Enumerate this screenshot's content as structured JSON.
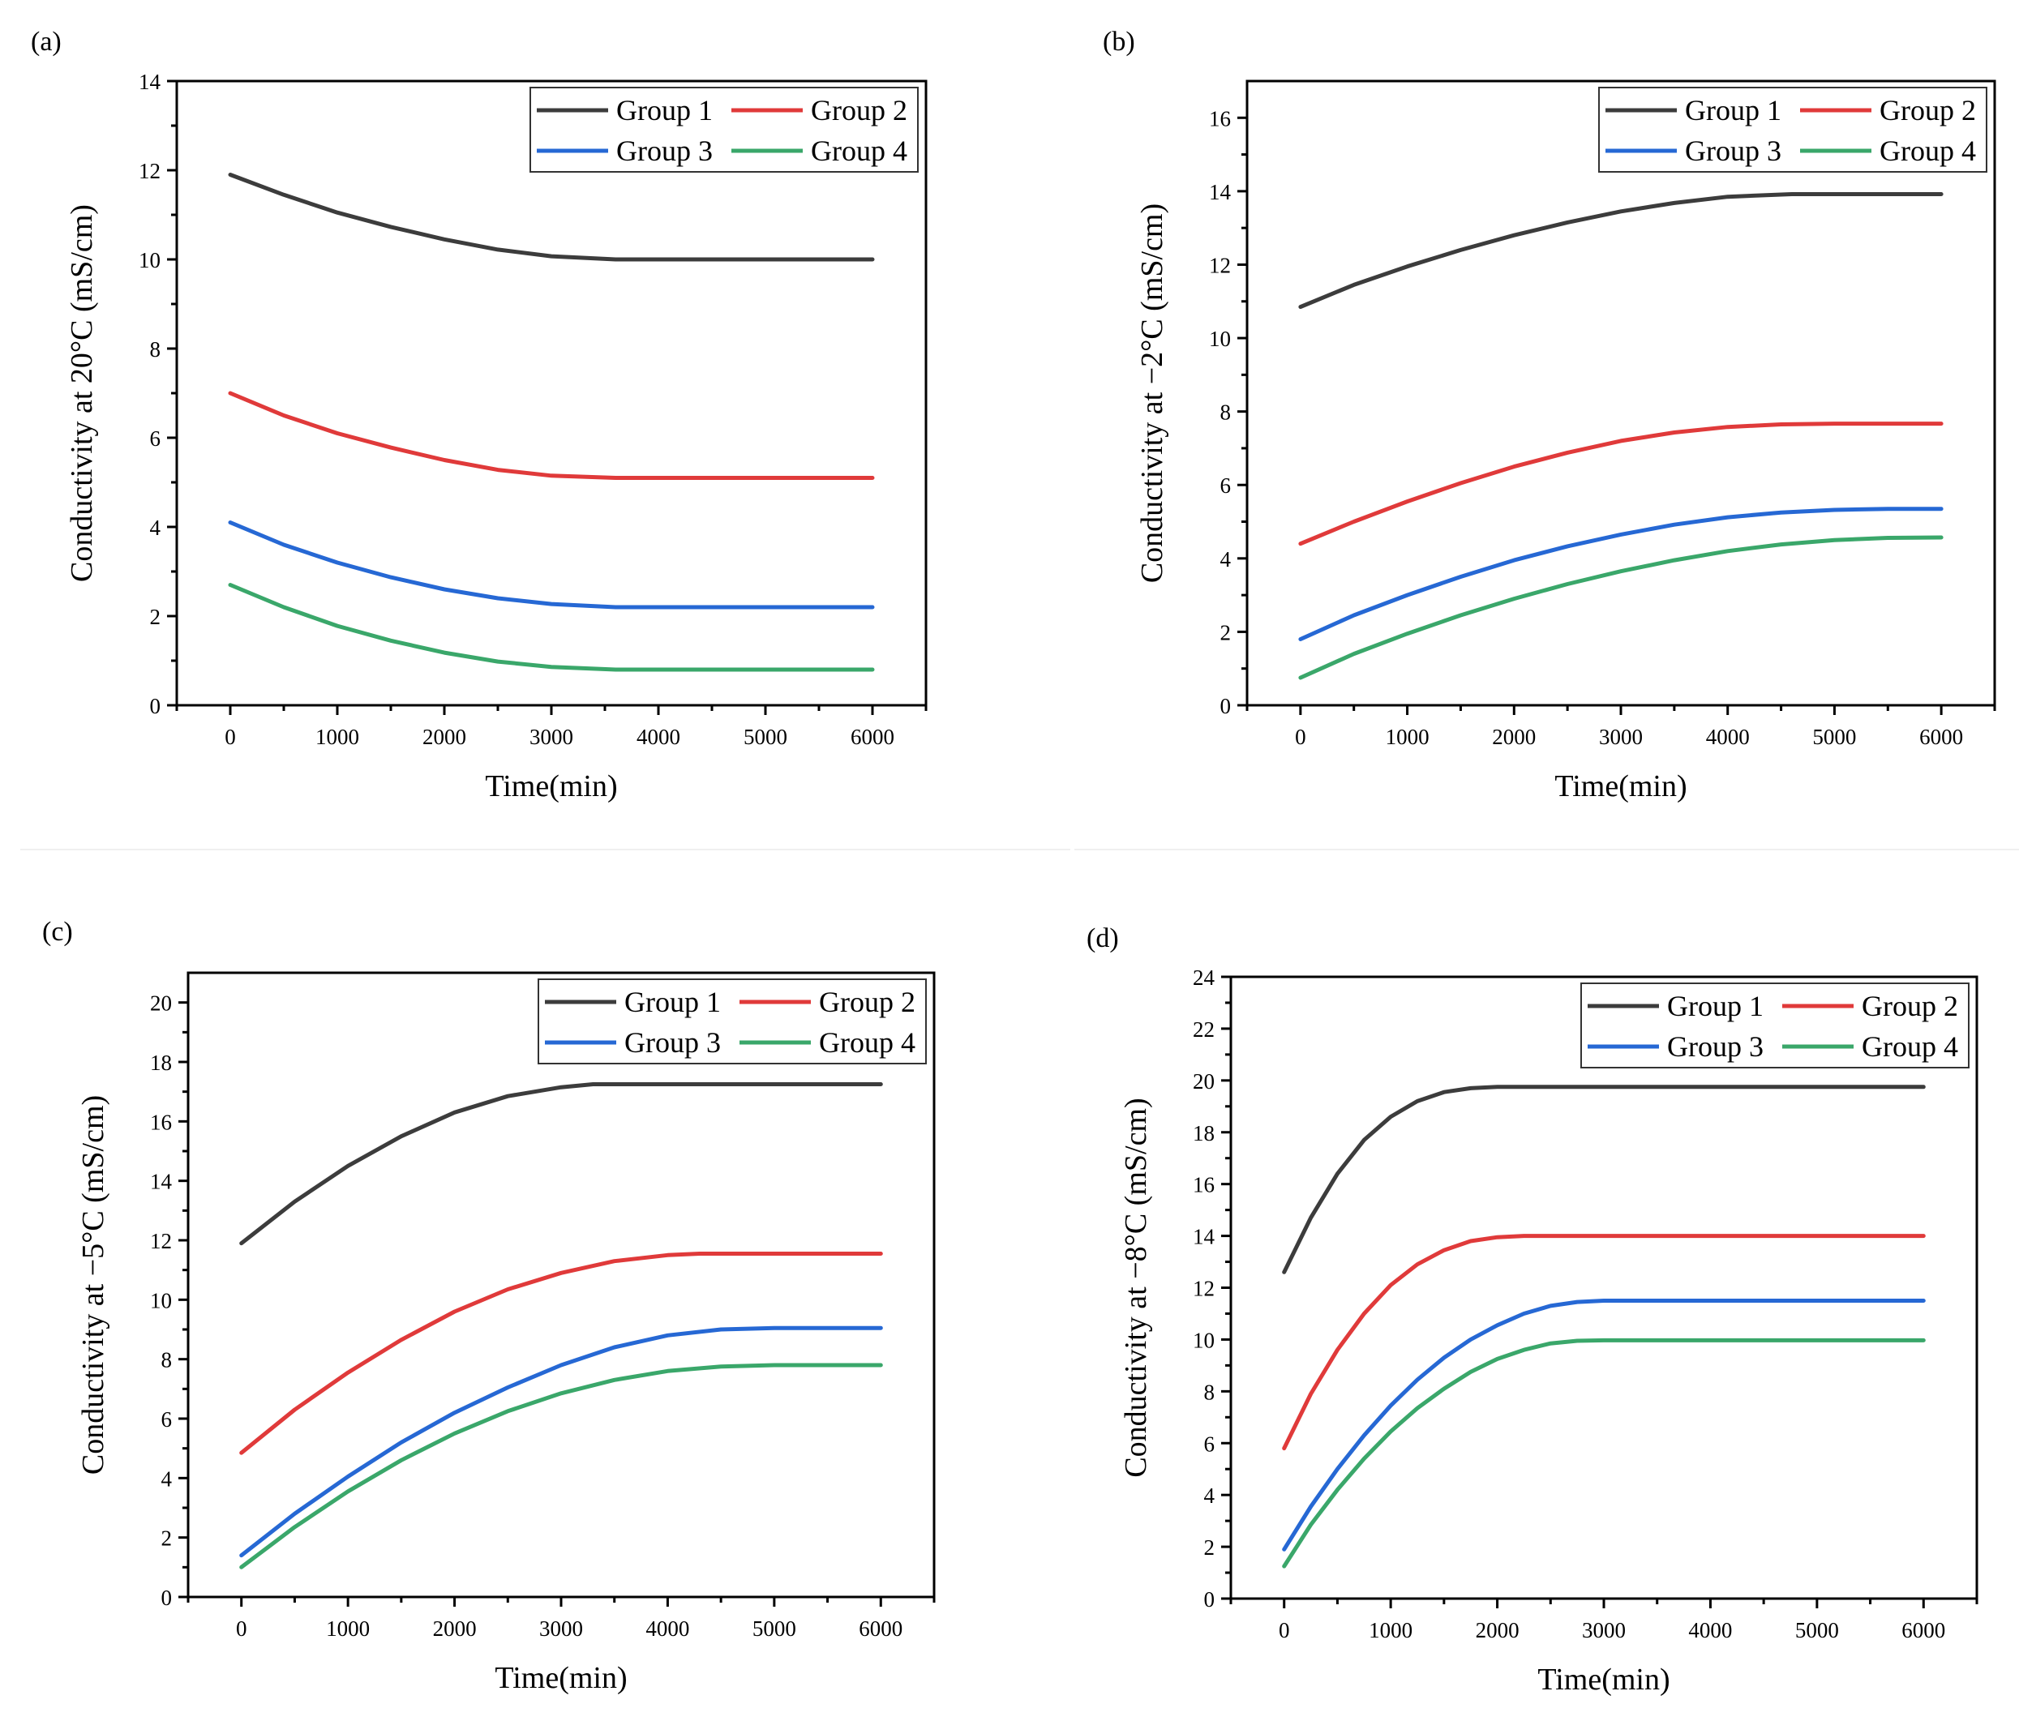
{
  "colors": {
    "Group 1": "#3c3c3c",
    "Group 2": "#e03a3a",
    "Group 3": "#2668d4",
    "Group 4": "#3aa76a"
  },
  "chart_data": [
    {
      "panel": "(a)",
      "type": "line",
      "xlabel": "Time(min)",
      "ylabel": "Conductivity at 20°C (mS/cm)",
      "xlim": [
        -500,
        6500
      ],
      "ylim": [
        0,
        14
      ],
      "xticks": [
        0,
        1000,
        2000,
        3000,
        4000,
        5000,
        6000
      ],
      "yticks": [
        0,
        2,
        4,
        6,
        8,
        10,
        12,
        14
      ],
      "legend_loc": "top-right",
      "series": [
        {
          "name": "Group 1",
          "x": [
            0,
            500,
            1000,
            1500,
            2000,
            2500,
            3000,
            3600,
            4000,
            5000,
            6000
          ],
          "values": [
            11.9,
            11.45,
            11.05,
            10.73,
            10.45,
            10.22,
            10.07,
            10.0,
            10.0,
            10.0,
            10.0
          ]
        },
        {
          "name": "Group 2",
          "x": [
            0,
            500,
            1000,
            1500,
            2000,
            2500,
            3000,
            3600,
            4000,
            5000,
            6000
          ],
          "values": [
            7.0,
            6.5,
            6.1,
            5.78,
            5.5,
            5.28,
            5.15,
            5.1,
            5.1,
            5.1,
            5.1
          ]
        },
        {
          "name": "Group 3",
          "x": [
            0,
            500,
            1000,
            1500,
            2000,
            2500,
            3000,
            3600,
            4000,
            5000,
            6000
          ],
          "values": [
            4.1,
            3.6,
            3.2,
            2.87,
            2.6,
            2.4,
            2.27,
            2.2,
            2.2,
            2.2,
            2.2
          ]
        },
        {
          "name": "Group 4",
          "x": [
            0,
            500,
            1000,
            1500,
            2000,
            2500,
            3000,
            3600,
            4000,
            5000,
            6000
          ],
          "values": [
            2.7,
            2.2,
            1.78,
            1.45,
            1.18,
            0.98,
            0.86,
            0.8,
            0.8,
            0.8,
            0.8
          ]
        }
      ]
    },
    {
      "panel": "(b)",
      "type": "line",
      "xlabel": "Time(min)",
      "ylabel": "Conductivity at −2°C (mS/cm)",
      "xlim": [
        -500,
        6500
      ],
      "ylim": [
        0,
        17
      ],
      "xticks": [
        0,
        1000,
        2000,
        3000,
        4000,
        5000,
        6000
      ],
      "yticks": [
        0,
        2,
        4,
        6,
        8,
        10,
        12,
        14,
        16
      ],
      "legend_loc": "top-right",
      "series": [
        {
          "name": "Group 1",
          "x": [
            0,
            500,
            1000,
            1500,
            2000,
            2500,
            3000,
            3500,
            4000,
            4600,
            5000,
            6000
          ],
          "values": [
            10.85,
            11.45,
            11.95,
            12.4,
            12.8,
            13.15,
            13.45,
            13.68,
            13.85,
            13.92,
            13.92,
            13.92
          ]
        },
        {
          "name": "Group 2",
          "x": [
            0,
            500,
            1000,
            1500,
            2000,
            2500,
            3000,
            3500,
            4000,
            4500,
            5000,
            6000
          ],
          "values": [
            4.4,
            5.0,
            5.55,
            6.05,
            6.5,
            6.88,
            7.2,
            7.43,
            7.58,
            7.65,
            7.67,
            7.67
          ]
        },
        {
          "name": "Group 3",
          "x": [
            0,
            500,
            1000,
            1500,
            2000,
            2500,
            3000,
            3500,
            4000,
            4500,
            5000,
            5500,
            6000
          ],
          "values": [
            1.8,
            2.45,
            3.0,
            3.5,
            3.95,
            4.33,
            4.65,
            4.92,
            5.12,
            5.25,
            5.32,
            5.35,
            5.35
          ]
        },
        {
          "name": "Group 4",
          "x": [
            0,
            500,
            1000,
            1500,
            2000,
            2500,
            3000,
            3500,
            4000,
            4500,
            5000,
            5500,
            6000
          ],
          "values": [
            0.75,
            1.4,
            1.95,
            2.45,
            2.9,
            3.3,
            3.65,
            3.95,
            4.2,
            4.38,
            4.5,
            4.56,
            4.57
          ]
        }
      ]
    },
    {
      "panel": "(c)",
      "type": "line",
      "xlabel": "Time(min)",
      "ylabel": "Conductivity at −5°C (mS/cm)",
      "xlim": [
        -500,
        6500
      ],
      "ylim": [
        0,
        21
      ],
      "xticks": [
        0,
        1000,
        2000,
        3000,
        4000,
        5000,
        6000
      ],
      "yticks": [
        0,
        2,
        4,
        6,
        8,
        10,
        12,
        14,
        16,
        18,
        20
      ],
      "legend_loc": "top-right",
      "series": [
        {
          "name": "Group 1",
          "x": [
            0,
            500,
            1000,
            1500,
            2000,
            2500,
            3000,
            3300,
            4000,
            5000,
            6000
          ],
          "values": [
            11.9,
            13.3,
            14.5,
            15.5,
            16.3,
            16.85,
            17.15,
            17.25,
            17.25,
            17.25,
            17.25
          ]
        },
        {
          "name": "Group 2",
          "x": [
            0,
            500,
            1000,
            1500,
            2000,
            2500,
            3000,
            3500,
            4000,
            4300,
            5000,
            6000
          ],
          "values": [
            4.85,
            6.3,
            7.55,
            8.65,
            9.6,
            10.35,
            10.9,
            11.3,
            11.5,
            11.55,
            11.55,
            11.55
          ]
        },
        {
          "name": "Group 3",
          "x": [
            0,
            500,
            1000,
            1500,
            2000,
            2500,
            3000,
            3500,
            4000,
            4500,
            5000,
            6000
          ],
          "values": [
            1.4,
            2.8,
            4.05,
            5.2,
            6.2,
            7.05,
            7.8,
            8.4,
            8.8,
            9.0,
            9.05,
            9.05
          ]
        },
        {
          "name": "Group 4",
          "x": [
            0,
            500,
            1000,
            1500,
            2000,
            2500,
            3000,
            3500,
            4000,
            4500,
            5000,
            6000
          ],
          "values": [
            1.0,
            2.35,
            3.55,
            4.6,
            5.5,
            6.25,
            6.85,
            7.3,
            7.6,
            7.75,
            7.8,
            7.8
          ]
        }
      ]
    },
    {
      "panel": "(d)",
      "type": "line",
      "xlabel": "Time(min)",
      "ylabel": "Conductivity at −8°C (mS/cm)",
      "xlim": [
        -500,
        6500
      ],
      "ylim": [
        0,
        24
      ],
      "xticks": [
        0,
        1000,
        2000,
        3000,
        4000,
        5000,
        6000
      ],
      "yticks": [
        0,
        2,
        4,
        6,
        8,
        10,
        12,
        14,
        16,
        18,
        20,
        22,
        24
      ],
      "legend_loc": "top-right",
      "series": [
        {
          "name": "Group 1",
          "x": [
            0,
            250,
            500,
            750,
            1000,
            1250,
            1500,
            1750,
            2000,
            3000,
            4000,
            5000,
            6000
          ],
          "values": [
            12.6,
            14.7,
            16.4,
            17.7,
            18.6,
            19.2,
            19.55,
            19.7,
            19.75,
            19.75,
            19.75,
            19.75,
            19.75
          ]
        },
        {
          "name": "Group 2",
          "x": [
            0,
            250,
            500,
            750,
            1000,
            1250,
            1500,
            1750,
            2000,
            2250,
            3000,
            4000,
            5000,
            6000
          ],
          "values": [
            5.8,
            7.9,
            9.6,
            11.0,
            12.1,
            12.9,
            13.45,
            13.8,
            13.95,
            14.0,
            14.0,
            14.0,
            14.0,
            14.0
          ]
        },
        {
          "name": "Group 3",
          "x": [
            0,
            250,
            500,
            750,
            1000,
            1250,
            1500,
            1750,
            2000,
            2250,
            2500,
            2750,
            3000,
            4000,
            5000,
            6000
          ],
          "values": [
            1.9,
            3.55,
            5.0,
            6.3,
            7.45,
            8.45,
            9.3,
            10.0,
            10.55,
            11.0,
            11.3,
            11.45,
            11.5,
            11.5,
            11.5,
            11.5
          ]
        },
        {
          "name": "Group 4",
          "x": [
            0,
            250,
            500,
            750,
            1000,
            1250,
            1500,
            1750,
            2000,
            2250,
            2500,
            2750,
            3000,
            4000,
            5000,
            6000
          ],
          "values": [
            1.25,
            2.85,
            4.2,
            5.4,
            6.45,
            7.35,
            8.1,
            8.75,
            9.25,
            9.6,
            9.85,
            9.95,
            9.97,
            9.97,
            9.97,
            9.97
          ]
        }
      ]
    }
  ]
}
